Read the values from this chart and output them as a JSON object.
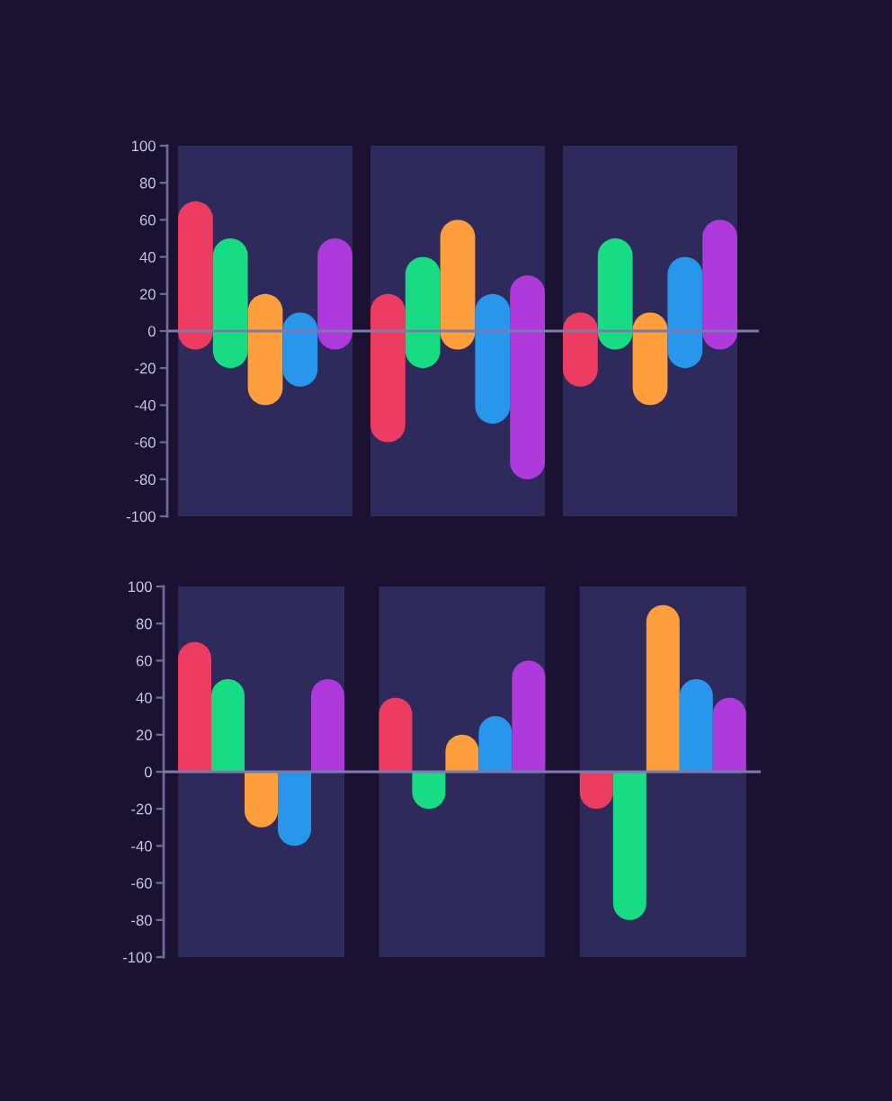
{
  "chart_data": [
    {
      "type": "bar",
      "categories": [
        null,
        null,
        null
      ],
      "series": [
        {
          "color": "#ec3c62",
          "base": [
            -10,
            -60,
            -30
          ],
          "values": [
            80,
            80,
            40
          ]
        },
        {
          "color": "#18dc84",
          "base": [
            -20,
            -20,
            -10
          ],
          "values": [
            70,
            60,
            60
          ]
        },
        {
          "color": "#ff9e3c",
          "base": [
            -40,
            -10,
            -40
          ],
          "values": [
            60,
            70,
            50
          ]
        },
        {
          "color": "#2896ea",
          "base": [
            -30,
            -50,
            -20
          ],
          "values": [
            40,
            70,
            60
          ]
        },
        {
          "color": "#ae3adc",
          "base": [
            -10,
            -80,
            -10
          ],
          "values": [
            60,
            110,
            70
          ]
        }
      ],
      "ylim": [
        -100,
        100
      ],
      "yticks": [
        -100,
        -80,
        -60,
        -40,
        -20,
        0,
        20,
        40,
        60,
        80,
        100
      ],
      "tick_labels": "y",
      "ref_lines": [
        {
          "axis": "y",
          "value": 0,
          "color": "#7d7bab"
        }
      ]
    },
    {
      "type": "bar",
      "categories": [
        null,
        null,
        null
      ],
      "series": [
        {
          "color": "#ec3c62",
          "values": [
            70,
            40,
            -20
          ]
        },
        {
          "color": "#18dc84",
          "values": [
            50,
            -20,
            -80
          ]
        },
        {
          "color": "#ff9e3c",
          "values": [
            -30,
            20,
            90
          ]
        },
        {
          "color": "#2896ea",
          "values": [
            -40,
            30,
            50
          ]
        },
        {
          "color": "#ae3adc",
          "values": [
            50,
            60,
            40
          ]
        }
      ],
      "ylim": [
        -100,
        100
      ],
      "yticks": [
        -100,
        -80,
        -60,
        -40,
        -20,
        0,
        20,
        40,
        60,
        80,
        100
      ],
      "tick_labels": "y",
      "ref_lines": [
        {
          "axis": "y",
          "value": 0,
          "color": "#7d7bab"
        }
      ]
    }
  ]
}
